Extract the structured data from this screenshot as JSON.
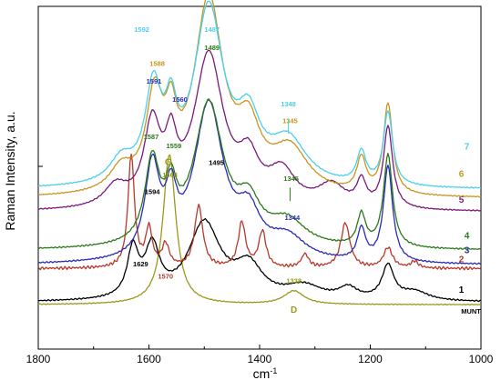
{
  "chart_data": {
    "type": "line",
    "xlabel": "cm-1",
    "ylabel": "Raman Intensity, a.u.",
    "xlim": [
      1800,
      1000
    ],
    "x_reversed": true,
    "x_ticks": [
      "1800",
      "1600",
      "1400",
      "1200",
      "1000"
    ],
    "y_ticks_labeled": false,
    "colors": {
      "MUNT": "#9a9a1a",
      "1": "#000000",
      "2": "#b8382a",
      "3": "#2a2ab8",
      "4": "#2a7a1a",
      "5": "#7a1a7a",
      "6": "#c8961e",
      "7": "#4ad0f0"
    },
    "series": [
      {
        "name": "MUNT",
        "label_x": 1030,
        "label_y": 22,
        "offset": 20,
        "noise": 0.25,
        "peaks": [
          [
            1563,
            133,
            14
          ],
          [
            1338,
            12,
            22
          ]
        ]
      },
      {
        "name": "1",
        "label_x": 1040,
        "label_y": 33,
        "offset": 22,
        "noise": 0.4,
        "peaks": [
          [
            1629,
            42,
            12
          ],
          [
            1594,
            44,
            16
          ],
          [
            1500,
            68,
            35
          ],
          [
            1420,
            28,
            30
          ],
          [
            1320,
            12,
            40
          ],
          [
            1240,
            10,
            20
          ],
          [
            1168,
            30,
            13
          ],
          [
            1120,
            8,
            30
          ]
        ]
      },
      {
        "name": "2",
        "label_x": 1040,
        "label_y": 60,
        "offset": 52,
        "noise": 0.9,
        "peaks": [
          [
            1632,
            100,
            7
          ],
          [
            1600,
            34,
            7
          ],
          [
            1570,
            20,
            8
          ],
          [
            1510,
            55,
            9
          ],
          [
            1432,
            40,
            8
          ],
          [
            1395,
            32,
            8
          ],
          [
            1318,
            12,
            8
          ],
          [
            1245,
            40,
            10
          ],
          [
            1168,
            18,
            10
          ],
          [
            1120,
            6,
            8
          ]
        ]
      },
      {
        "name": "3",
        "label_x": 1030,
        "label_y": 68,
        "offset": 55,
        "noise": 0.4,
        "peaks": [
          [
            1594,
            80,
            16
          ],
          [
            1560,
            45,
            12
          ],
          [
            1492,
            138,
            32
          ],
          [
            1420,
            35,
            25
          ],
          [
            1350,
            20,
            40
          ],
          [
            1216,
            28,
            9
          ],
          [
            1168,
            85,
            10
          ]
        ]
      },
      {
        "name": "4",
        "label_x": 1030,
        "label_y": 81,
        "offset": 68,
        "noise": 0.4,
        "peaks": [
          [
            1594,
            72,
            16
          ],
          [
            1560,
            40,
            12
          ],
          [
            1492,
            126,
            32
          ],
          [
            1420,
            32,
            25
          ],
          [
            1350,
            22,
            40
          ],
          [
            1216,
            28,
            9
          ],
          [
            1168,
            82,
            10
          ]
        ]
      },
      {
        "name": "5",
        "label_x": 1040,
        "label_y": 113,
        "offset": 102,
        "noise": 0.3,
        "peaks": [
          [
            1660,
            18,
            25
          ],
          [
            1594,
            70,
            18
          ],
          [
            1560,
            45,
            12
          ],
          [
            1492,
            135,
            32
          ],
          [
            1420,
            35,
            22
          ],
          [
            1360,
            30,
            30
          ],
          [
            1270,
            20,
            30
          ],
          [
            1216,
            22,
            10
          ],
          [
            1168,
            72,
            10
          ]
        ]
      },
      {
        "name": "6",
        "label_x": 1040,
        "label_y": 136,
        "offset": 114,
        "noise": 0.3,
        "peaks": [
          [
            1650,
            20,
            25
          ],
          [
            1590,
            80,
            18
          ],
          [
            1560,
            48,
            12
          ],
          [
            1492,
            170,
            32
          ],
          [
            1420,
            48,
            25
          ],
          [
            1345,
            38,
            40
          ],
          [
            1216,
            30,
            10
          ],
          [
            1168,
            80,
            10
          ]
        ]
      },
      {
        "name": "7",
        "label_x": 1030,
        "label_y": 160,
        "offset": 122,
        "noise": 0.3,
        "peaks": [
          [
            1650,
            20,
            25
          ],
          [
            1592,
            80,
            18
          ],
          [
            1560,
            48,
            12
          ],
          [
            1492,
            155,
            32
          ],
          [
            1420,
            48,
            25
          ],
          [
            1348,
            38,
            40
          ],
          [
            1216,
            28,
            10
          ],
          [
            1168,
            65,
            10
          ]
        ]
      }
    ],
    "annotations": [
      {
        "text": "1486",
        "x": 1486,
        "y": 306,
        "color": "#c8961e",
        "size": "small"
      },
      {
        "text": "1592",
        "x": 1613,
        "y": 262,
        "color": "#4ad0f0",
        "size": "small"
      },
      {
        "text": "1487",
        "x": 1486,
        "y": 262,
        "color": "#4ad0f0",
        "size": "small"
      },
      {
        "text": "1489",
        "x": 1486,
        "y": 246,
        "color": "#2a7a1a",
        "size": "small"
      },
      {
        "text": "1588",
        "x": 1585,
        "y": 232,
        "color": "#c8961e",
        "size": "small"
      },
      {
        "text": "1591",
        "x": 1591,
        "y": 216,
        "color": "#2a2ab8",
        "size": "small"
      },
      {
        "text": "1560",
        "x": 1544,
        "y": 200,
        "color": "#2a2ab8",
        "size": "small"
      },
      {
        "text": "1348",
        "x": 1348,
        "y": 196,
        "color": "#4ad0f0",
        "size": "small"
      },
      {
        "text": "1345",
        "x": 1345,
        "y": 181,
        "color": "#c8961e",
        "size": "small"
      },
      {
        "text": "1587",
        "x": 1596,
        "y": 167,
        "color": "#2a7a1a",
        "size": "small"
      },
      {
        "text": "1559",
        "x": 1555,
        "y": 159,
        "color": "#2a7a1a",
        "size": "small"
      },
      {
        "text": "1495",
        "x": 1478,
        "y": 144,
        "color": "#000000",
        "size": "small"
      },
      {
        "text": "G",
        "x": 1565,
        "y": 144,
        "color": "#9a9a1a",
        "size": "big"
      },
      {
        "text": "1563",
        "x": 1562,
        "y": 133,
        "color": "#9a9a1a",
        "size": "small"
      },
      {
        "text": "1345",
        "x": 1343,
        "y": 130,
        "color": "#2a7a1a",
        "size": "small"
      },
      {
        "text": "1594",
        "x": 1594,
        "y": 118,
        "color": "#000000",
        "size": "small"
      },
      {
        "text": "1344",
        "x": 1341,
        "y": 95,
        "color": "#2a2ab8",
        "size": "small"
      },
      {
        "text": "1629",
        "x": 1615,
        "y": 54,
        "color": "#000000",
        "size": "small"
      },
      {
        "text": "1570",
        "x": 1570,
        "y": 43,
        "color": "#b8382a",
        "size": "small"
      },
      {
        "text": "1338",
        "x": 1338,
        "y": 39,
        "color": "#9a9a1a",
        "size": "small"
      },
      {
        "text": "D",
        "x": 1338,
        "y": 13,
        "color": "#9a9a1a",
        "size": "big"
      },
      {
        "text": "MUNT",
        "x": 1018,
        "y": 12,
        "color": "#000000",
        "size": "small"
      }
    ]
  }
}
